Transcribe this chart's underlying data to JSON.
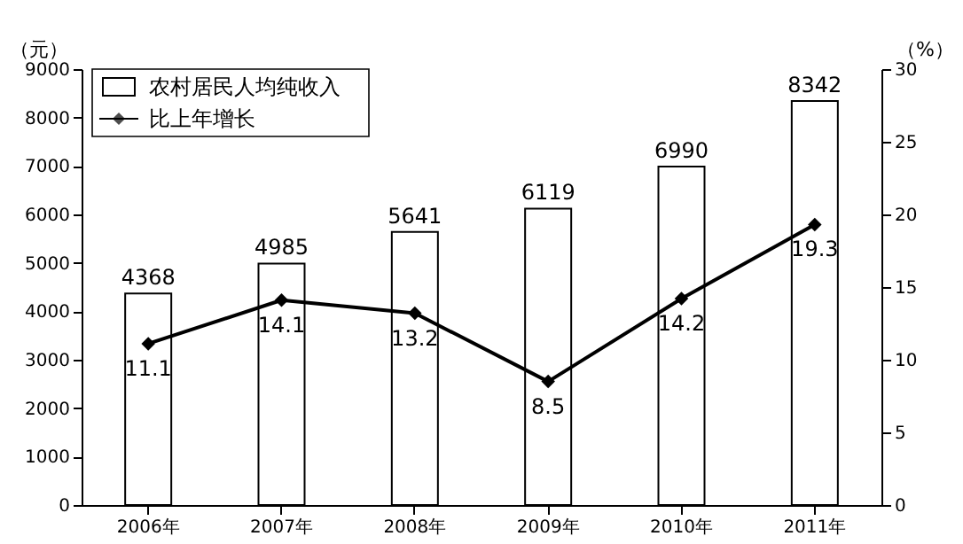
{
  "chart_data": {
    "type": "bar",
    "categories": [
      "2006年",
      "2007年",
      "2008年",
      "2009年",
      "2010年",
      "2011年"
    ],
    "ylabel": "（元）",
    "y2label": "（%）",
    "ylim": [
      0,
      9000
    ],
    "yticks": [
      0,
      1000,
      2000,
      3000,
      4000,
      5000,
      6000,
      7000,
      8000,
      9000
    ],
    "y2lim": [
      0,
      30
    ],
    "y2ticks": [
      0,
      5,
      10,
      15,
      20,
      25,
      30
    ],
    "grid": false,
    "legend": "top left",
    "data_labels": true,
    "series": [
      {
        "name": "农村居民人均纯收入",
        "color": "#ffffff",
        "values": [
          4368,
          4985,
          5641,
          6119,
          6990,
          8342
        ]
      },
      {
        "name": "比上年增长",
        "type": "line",
        "axis": "y2",
        "color": "#000000",
        "marker": "diamond",
        "values": [
          11.1,
          14.1,
          13.2,
          8.5,
          14.2,
          19.3
        ]
      }
    ]
  }
}
